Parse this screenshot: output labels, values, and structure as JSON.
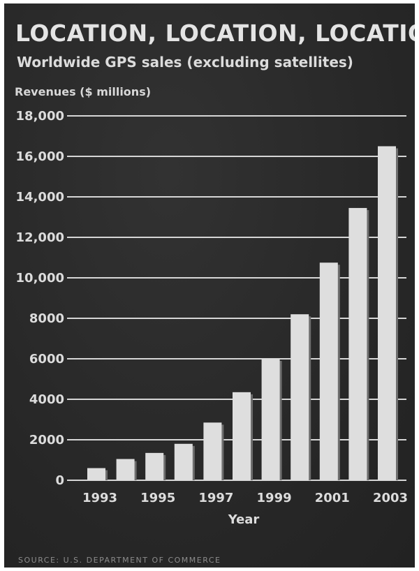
{
  "chart_data": {
    "type": "bar",
    "title": "LOCATION, LOCATION, LOCATION",
    "subtitle": "Worldwide GPS sales (excluding satellites)",
    "ylabel": "Revenues ($ millions)",
    "xlabel": "Year",
    "source": "SOURCE: U.S. DEPARTMENT OF COMMERCE",
    "categories": [
      "1993",
      "1994",
      "1995",
      "1996",
      "1997",
      "1998",
      "1999",
      "2000",
      "2001",
      "2002",
      "2003"
    ],
    "values": [
      600,
      1050,
      1350,
      1800,
      2850,
      4350,
      6000,
      8200,
      10750,
      13450,
      16500
    ],
    "x_tick_labels": [
      "1993",
      "1995",
      "1997",
      "1999",
      "2001",
      "2003"
    ],
    "y_ticks": [
      {
        "value": 0,
        "label": "0"
      },
      {
        "value": 2000,
        "label": "2000"
      },
      {
        "value": 4000,
        "label": "4000"
      },
      {
        "value": 6000,
        "label": "6000"
      },
      {
        "value": 8000,
        "label": "8000"
      },
      {
        "value": 10000,
        "label": "10,000"
      },
      {
        "value": 12000,
        "label": "12,000"
      },
      {
        "value": 14000,
        "label": "14,000"
      },
      {
        "value": 16000,
        "label": "16,000"
      },
      {
        "value": 18000,
        "label": "18,000"
      }
    ],
    "ylim": [
      0,
      18000
    ],
    "grid": true,
    "colors": {
      "background": "#2b2b2b",
      "bars": "#dedede",
      "grid": "#d6d6d6",
      "text": "#dcdcdc"
    }
  }
}
